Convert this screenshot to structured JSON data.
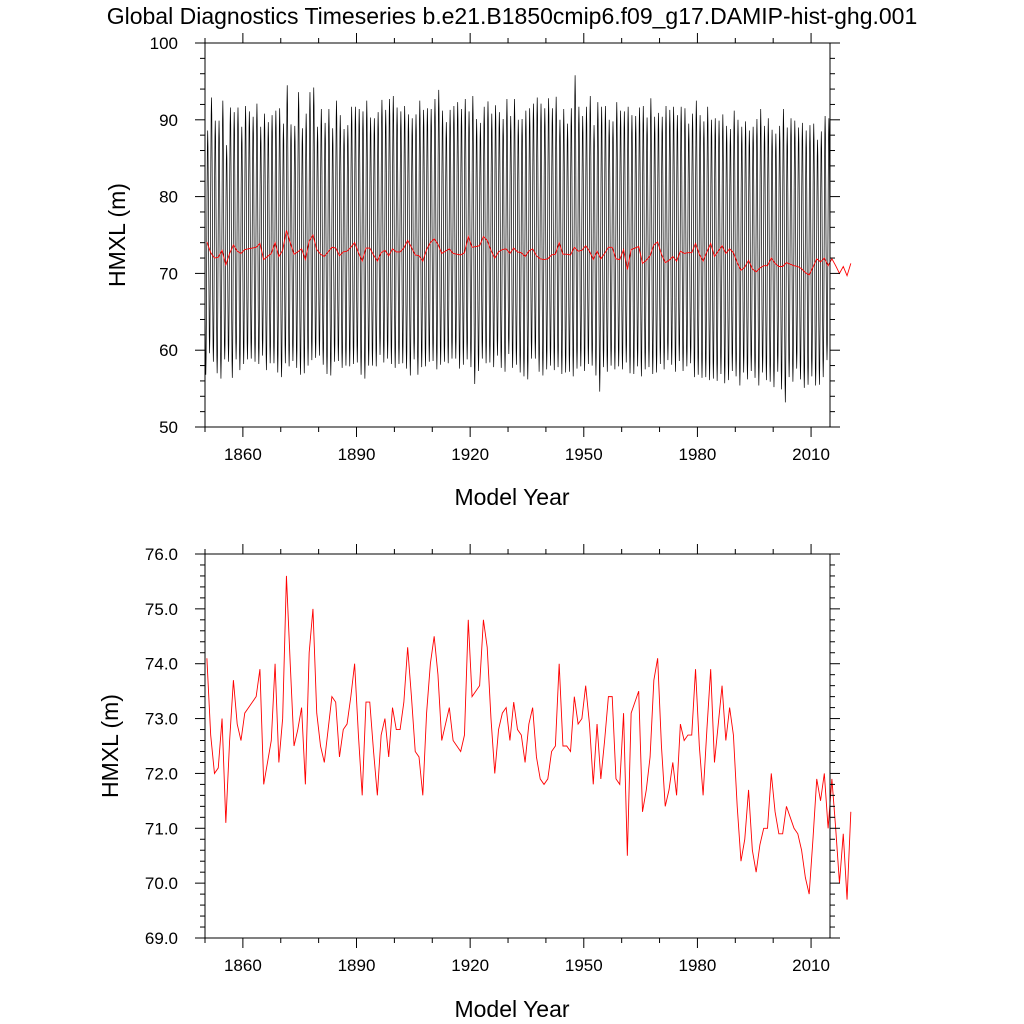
{
  "title": "Global Diagnostics Timeseries b.e21.B1850cmip6.f09_g17.DAMIP-hist-ghg.001",
  "colors": {
    "monthly": "#000000",
    "annual": "#ff0000",
    "frame": "#000000"
  },
  "chart_data": [
    {
      "type": "line",
      "panel": "top",
      "xlabel": "Model Year",
      "ylabel": "HMXL (m)",
      "xlim": [
        1850,
        2015
      ],
      "ylim": [
        50,
        100
      ],
      "xticks": [
        1860,
        1890,
        1920,
        1950,
        1980,
        2010
      ],
      "xtick_labels": [
        "1860",
        "1890",
        "1920",
        "1950",
        "1980",
        "2010"
      ],
      "yticks": [
        50,
        60,
        70,
        80,
        90,
        100
      ],
      "ytick_labels": [
        "50",
        "60",
        "70",
        "80",
        "90",
        "100"
      ],
      "grid": false,
      "series": [
        {
          "kind": "monthly",
          "color": "#000000",
          "year_start": 1850,
          "annual_max": [
            88.6,
            92.9,
            89.9,
            89.9,
            92.5,
            86.7,
            91.6,
            91.0,
            91.6,
            89.1,
            91.8,
            91.1,
            90.4,
            92.1,
            89.1,
            90.8,
            89.7,
            90.6,
            91.2,
            91.5,
            89.5,
            94.5,
            89.4,
            89.2,
            93.6,
            88.9,
            90.8,
            93.6,
            94.2,
            89.1,
            91.4,
            89.6,
            91.4,
            88.9,
            92.5,
            90.6,
            88.8,
            89.3,
            91.7,
            91.7,
            91.4,
            91.1,
            92.5,
            90.3,
            90.2,
            91.0,
            92.6,
            91.3,
            92.7,
            93.1,
            91.6,
            91.1,
            91.8,
            90.7,
            90.2,
            90.7,
            92.5,
            91.3,
            91.5,
            91.4,
            92.7,
            93.9,
            91.2,
            89.7,
            91.3,
            91.8,
            92.3,
            91.4,
            92.7,
            91.1,
            93.1,
            90.1,
            89.6,
            91.7,
            92.4,
            90.8,
            91.9,
            91.0,
            90.1,
            92.7,
            90.5,
            92.7,
            90.0,
            90.1,
            91.2,
            91.5,
            92.1,
            92.9,
            92.1,
            91.5,
            92.8,
            91.5,
            93.0,
            90.0,
            91.4,
            89.5,
            91.5,
            95.8,
            91.7,
            90.5,
            91.7,
            93.1,
            89.3,
            92.3,
            91.7,
            91.8,
            90.0,
            89.8,
            92.3,
            91.2,
            91.1,
            91.7,
            90.6,
            90.5,
            91.6,
            91.8,
            90.3,
            92.8,
            90.4,
            90.9,
            90.4,
            91.8,
            91.3,
            91.7,
            90.6,
            91.7,
            91.5,
            89.5,
            90.8,
            92.5,
            90.6,
            89.8,
            91.7,
            90.0,
            90.2,
            89.9,
            90.7,
            89.2,
            88.8,
            91.2,
            90.0,
            89.1,
            89.8,
            88.6,
            89.1,
            90.1,
            91.4,
            89.2,
            90.2,
            88.7,
            88.2,
            89.2,
            91.4,
            89.0,
            90.2,
            89.9,
            89.0,
            89.6,
            88.6,
            89.3,
            89.5,
            87.4,
            88.5,
            90.5,
            90.2
          ],
          "annual_min": [
            56.8,
            59.6,
            58.5,
            57.0,
            56.3,
            58.8,
            58.5,
            56.4,
            58.8,
            57.4,
            58.2,
            58.8,
            58.9,
            58.5,
            58.2,
            59.3,
            57.4,
            58.3,
            58.3,
            57.1,
            56.5,
            58.3,
            57.9,
            58.6,
            57.7,
            56.8,
            57.0,
            58.0,
            58.7,
            59.0,
            59.3,
            58.1,
            56.9,
            56.7,
            58.5,
            58.6,
            57.7,
            58.0,
            57.9,
            58.2,
            58.4,
            56.8,
            56.3,
            58.0,
            58.0,
            57.9,
            59.4,
            58.4,
            58.9,
            58.2,
            57.7,
            58.2,
            58.3,
            57.6,
            56.7,
            58.8,
            56.8,
            57.8,
            57.9,
            58.5,
            58.6,
            57.5,
            58.1,
            58.5,
            58.3,
            58.9,
            58.9,
            57.6,
            58.1,
            58.8,
            57.8,
            55.6,
            57.3,
            58.9,
            58.3,
            58.4,
            57.8,
            59.3,
            57.7,
            57.2,
            59.5,
            57.7,
            58.1,
            57.1,
            56.6,
            56.2,
            58.9,
            58.9,
            57.2,
            56.7,
            57.5,
            58.0,
            57.4,
            57.8,
            56.9,
            57.1,
            57.2,
            56.6,
            57.6,
            57.9,
            57.3,
            58.2,
            58.0,
            56.7,
            54.6,
            57.8,
            57.2,
            58.0,
            57.5,
            57.9,
            57.5,
            58.4,
            57.0,
            56.9,
            57.9,
            56.6,
            57.5,
            57.8,
            56.9,
            57.1,
            58.2,
            57.5,
            58.7,
            58.1,
            57.2,
            58.6,
            57.3,
            57.9,
            58.3,
            56.5,
            56.8,
            56.4,
            56.5,
            56.1,
            56.3,
            56.0,
            56.9,
            55.7,
            56.1,
            57.3,
            56.6,
            55.4,
            57.1,
            56.2,
            57.3,
            56.4,
            55.4,
            57.1,
            56.1,
            55.9,
            55.2,
            57.2,
            54.9,
            53.2,
            56.5,
            55.9,
            57.6,
            56.2,
            55.1,
            55.5,
            56.6,
            55.4,
            55.5,
            56.5,
            58.7
          ],
          "note_monthly": "each year: 12 monthly values cycling between annual_min and annual_max"
        },
        {
          "kind": "annual",
          "color": "#ff0000",
          "x_start": 1850,
          "values": [
            74.1,
            72.7,
            72.0,
            72.1,
            73.0,
            71.1,
            72.6,
            73.7,
            72.9,
            72.6,
            73.1,
            73.2,
            73.3,
            73.4,
            73.9,
            71.8,
            72.2,
            72.6,
            74.0,
            72.2,
            73.0,
            75.6,
            74.0,
            72.5,
            72.8,
            73.2,
            71.8,
            74.2,
            75.0,
            73.1,
            72.5,
            72.2,
            72.8,
            73.4,
            73.3,
            72.3,
            72.8,
            72.9,
            73.4,
            74.0,
            72.7,
            71.6,
            73.3,
            73.3,
            72.4,
            71.6,
            72.7,
            73.0,
            72.3,
            73.2,
            72.8,
            72.8,
            73.3,
            74.3,
            73.4,
            72.4,
            72.3,
            71.6,
            73.1,
            74.0,
            74.5,
            73.8,
            72.6,
            72.9,
            73.2,
            72.6,
            72.5,
            72.4,
            72.7,
            74.8,
            73.4,
            73.5,
            73.6,
            74.8,
            74.3,
            73.0,
            72.0,
            72.8,
            73.1,
            73.2,
            72.6,
            73.3,
            72.8,
            72.7,
            72.2,
            72.9,
            73.2,
            72.3,
            71.9,
            71.8,
            71.9,
            72.4,
            72.5,
            74.0,
            72.5,
            72.5,
            72.4,
            73.4,
            72.9,
            73.0,
            73.6,
            72.9,
            71.8,
            72.9,
            71.9,
            72.6,
            73.4,
            73.4,
            71.9,
            71.8,
            73.1,
            70.5,
            73.1,
            73.3,
            73.5,
            71.3,
            71.7,
            72.3,
            73.7,
            74.1,
            72.5,
            71.4,
            71.7,
            72.2,
            71.6,
            72.9,
            72.6,
            72.7,
            72.7,
            73.9,
            72.5,
            71.6,
            72.8,
            73.9,
            72.2,
            72.9,
            73.6,
            72.6,
            73.2,
            72.7,
            71.4,
            70.4,
            70.8,
            71.7,
            70.6,
            70.2,
            70.7,
            71.0,
            71.0,
            72.0,
            71.3,
            70.9,
            70.9,
            71.4,
            71.2,
            71.0,
            70.9,
            70.6,
            70.1,
            69.8,
            70.8,
            71.9,
            71.5,
            72.0,
            71.0,
            71.9,
            71.0,
            70.0,
            70.9,
            69.7,
            71.3
          ]
        }
      ]
    },
    {
      "type": "line",
      "panel": "bottom",
      "xlabel": "Model Year",
      "ylabel": "HMXL (m)",
      "xlim": [
        1850,
        2015
      ],
      "ylim": [
        69,
        76
      ],
      "xticks": [
        1860,
        1890,
        1920,
        1950,
        1980,
        2010
      ],
      "xtick_labels": [
        "1860",
        "1890",
        "1920",
        "1950",
        "1980",
        "2010"
      ],
      "yticks": [
        69,
        70,
        71,
        72,
        73,
        74,
        75,
        76
      ],
      "ytick_labels": [
        "69.0",
        "70.0",
        "71.0",
        "72.0",
        "73.0",
        "74.0",
        "75.0",
        "76.0"
      ],
      "grid": false,
      "series": [
        {
          "kind": "annual",
          "color": "#ff0000",
          "x_start": 1850,
          "values": [
            74.1,
            72.7,
            72.0,
            72.1,
            73.0,
            71.1,
            72.6,
            73.7,
            72.9,
            72.6,
            73.1,
            73.2,
            73.3,
            73.4,
            73.9,
            71.8,
            72.2,
            72.6,
            74.0,
            72.2,
            73.0,
            75.6,
            74.0,
            72.5,
            72.8,
            73.2,
            71.8,
            74.2,
            75.0,
            73.1,
            72.5,
            72.2,
            72.8,
            73.4,
            73.3,
            72.3,
            72.8,
            72.9,
            73.4,
            74.0,
            72.7,
            71.6,
            73.3,
            73.3,
            72.4,
            71.6,
            72.7,
            73.0,
            72.3,
            73.2,
            72.8,
            72.8,
            73.3,
            74.3,
            73.4,
            72.4,
            72.3,
            71.6,
            73.1,
            74.0,
            74.5,
            73.8,
            72.6,
            72.9,
            73.2,
            72.6,
            72.5,
            72.4,
            72.7,
            74.8,
            73.4,
            73.5,
            73.6,
            74.8,
            74.3,
            73.0,
            72.0,
            72.8,
            73.1,
            73.2,
            72.6,
            73.3,
            72.8,
            72.7,
            72.2,
            72.9,
            73.2,
            72.3,
            71.9,
            71.8,
            71.9,
            72.4,
            72.5,
            74.0,
            72.5,
            72.5,
            72.4,
            73.4,
            72.9,
            73.0,
            73.6,
            72.9,
            71.8,
            72.9,
            71.9,
            72.6,
            73.4,
            73.4,
            71.9,
            71.8,
            73.1,
            70.5,
            73.1,
            73.3,
            73.5,
            71.3,
            71.7,
            72.3,
            73.7,
            74.1,
            72.5,
            71.4,
            71.7,
            72.2,
            71.6,
            72.9,
            72.6,
            72.7,
            72.7,
            73.9,
            72.5,
            71.6,
            72.8,
            73.9,
            72.2,
            72.9,
            73.6,
            72.6,
            73.2,
            72.7,
            71.4,
            70.4,
            70.8,
            71.7,
            70.6,
            70.2,
            70.7,
            71.0,
            71.0,
            72.0,
            71.3,
            70.9,
            70.9,
            71.4,
            71.2,
            71.0,
            70.9,
            70.6,
            70.1,
            69.8,
            70.8,
            71.9,
            71.5,
            72.0,
            71.0,
            71.9,
            71.0,
            70.0,
            70.9,
            69.7,
            71.3
          ]
        }
      ]
    }
  ]
}
